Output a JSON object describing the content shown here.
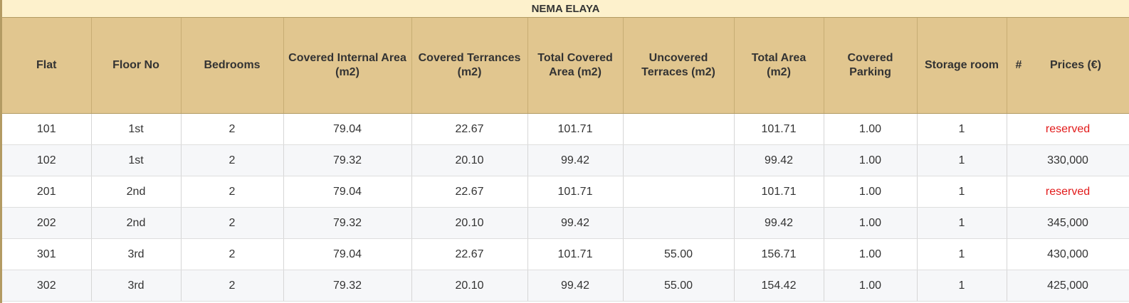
{
  "title": "NEMA ELAYA",
  "columns": [
    "Flat",
    "Floor No",
    "Bedrooms",
    "Covered Internal Area (m2)",
    "Covered Terrances (m2)",
    "Total Covered Area (m2)",
    "Uncovered Terraces (m2)",
    "Total Area (m2)",
    "Covered Parking",
    "Storage room"
  ],
  "price_column": {
    "hash": "#",
    "label": "Prices (€)"
  },
  "rows": [
    [
      "101",
      "1st",
      "2",
      "79.04",
      "22.67",
      "101.71",
      "",
      "101.71",
      "1.00",
      "1",
      "reserved"
    ],
    [
      "102",
      "1st",
      "2",
      "79.32",
      "20.10",
      "99.42",
      "",
      "99.42",
      "1.00",
      "1",
      "330,000"
    ],
    [
      "201",
      "2nd",
      "2",
      "79.04",
      "22.67",
      "101.71",
      "",
      "101.71",
      "1.00",
      "1",
      "reserved"
    ],
    [
      "202",
      "2nd",
      "2",
      "79.32",
      "20.10",
      "99.42",
      "",
      "99.42",
      "1.00",
      "1",
      "345,000"
    ],
    [
      "301",
      "3rd",
      "2",
      "79.04",
      "22.67",
      "101.71",
      "55.00",
      "156.71",
      "1.00",
      "1",
      "430,000"
    ],
    [
      "302",
      "3rd",
      "2",
      "79.32",
      "20.10",
      "99.42",
      "55.00",
      "154.42",
      "1.00",
      "1",
      "425,000"
    ]
  ],
  "colors": {
    "header_bg": "#e1c68f",
    "title_bg": "#fdf1cc",
    "reserved_text": "#e21b1b",
    "stripe_bg": "#f6f7f9"
  }
}
